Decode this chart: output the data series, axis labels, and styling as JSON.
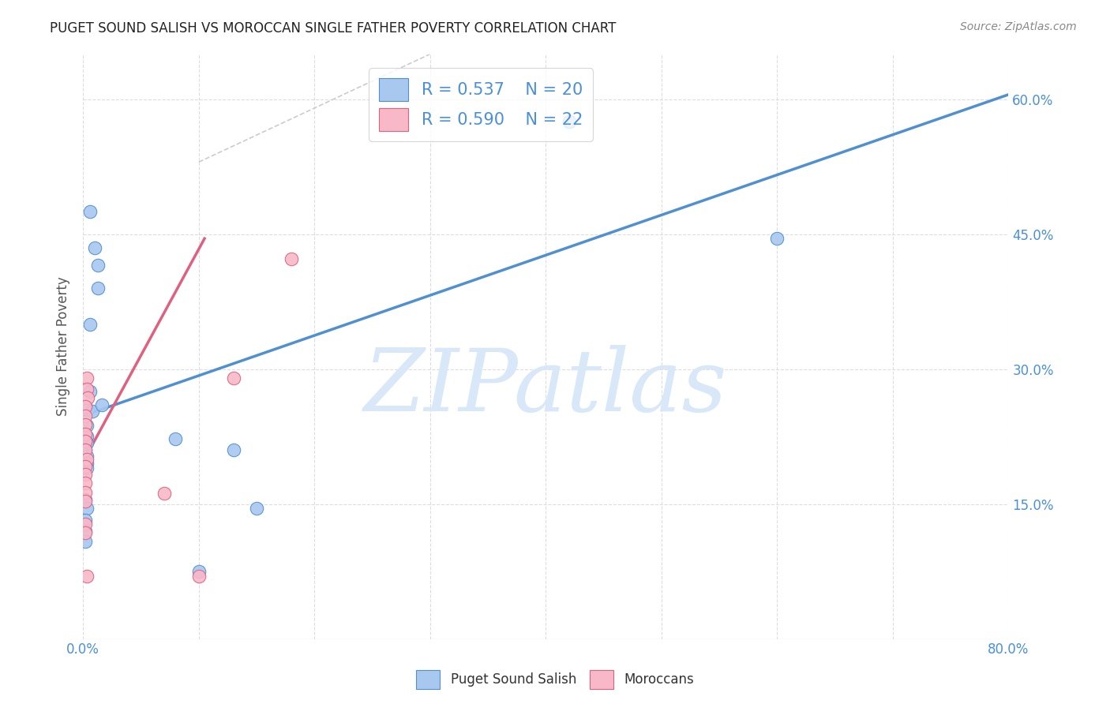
{
  "title": "PUGET SOUND SALISH VS MOROCCAN SINGLE FATHER POVERTY CORRELATION CHART",
  "source": "Source: ZipAtlas.com",
  "ylabel": "Single Father Poverty",
  "xlim": [
    0.0,
    0.8
  ],
  "ylim": [
    0.0,
    0.65
  ],
  "xtick_positions": [
    0.0,
    0.1,
    0.2,
    0.3,
    0.4,
    0.5,
    0.6,
    0.7,
    0.8
  ],
  "xticklabels": [
    "0.0%",
    "",
    "",
    "",
    "",
    "",
    "",
    "",
    "80.0%"
  ],
  "ytick_positions": [
    0.15,
    0.3,
    0.45,
    0.6
  ],
  "ytick_labels": [
    "15.0%",
    "30.0%",
    "45.0%",
    "60.0%"
  ],
  "blue_color": "#A8C8F0",
  "pink_color": "#F8B8C8",
  "blue_line_color": "#5090D0",
  "pink_line_color": "#E06080",
  "diagonal_color": "#CCCCCC",
  "watermark_color": "#D8E8F8",
  "blue_scatter": [
    [
      0.006,
      0.475
    ],
    [
      0.01,
      0.435
    ],
    [
      0.013,
      0.415
    ],
    [
      0.013,
      0.39
    ],
    [
      0.006,
      0.35
    ],
    [
      0.006,
      0.275
    ],
    [
      0.004,
      0.255
    ],
    [
      0.008,
      0.253
    ],
    [
      0.003,
      0.237
    ],
    [
      0.003,
      0.225
    ],
    [
      0.003,
      0.218
    ],
    [
      0.002,
      0.21
    ],
    [
      0.003,
      0.203
    ],
    [
      0.003,
      0.195
    ],
    [
      0.003,
      0.19
    ],
    [
      0.002,
      0.155
    ],
    [
      0.003,
      0.145
    ],
    [
      0.002,
      0.132
    ],
    [
      0.002,
      0.12
    ],
    [
      0.002,
      0.108
    ],
    [
      0.08,
      0.222
    ],
    [
      0.13,
      0.21
    ],
    [
      0.016,
      0.26
    ],
    [
      0.15,
      0.145
    ],
    [
      0.6,
      0.445
    ],
    [
      0.42,
      0.575
    ],
    [
      0.1,
      0.075
    ]
  ],
  "pink_scatter": [
    [
      0.003,
      0.29
    ],
    [
      0.003,
      0.278
    ],
    [
      0.004,
      0.268
    ],
    [
      0.002,
      0.258
    ],
    [
      0.002,
      0.248
    ],
    [
      0.002,
      0.238
    ],
    [
      0.002,
      0.228
    ],
    [
      0.002,
      0.22
    ],
    [
      0.002,
      0.21
    ],
    [
      0.003,
      0.2
    ],
    [
      0.002,
      0.192
    ],
    [
      0.002,
      0.183
    ],
    [
      0.002,
      0.173
    ],
    [
      0.002,
      0.163
    ],
    [
      0.002,
      0.153
    ],
    [
      0.07,
      0.162
    ],
    [
      0.002,
      0.128
    ],
    [
      0.002,
      0.118
    ],
    [
      0.18,
      0.422
    ],
    [
      0.13,
      0.29
    ],
    [
      0.003,
      0.07
    ],
    [
      0.1,
      0.07
    ]
  ],
  "blue_line_x": [
    0.0,
    0.8
  ],
  "blue_line_y": [
    0.248,
    0.605
  ],
  "pink_line_x": [
    -0.005,
    0.105
  ],
  "pink_line_y": [
    0.185,
    0.445
  ],
  "diag_line_x": [
    0.1,
    0.3
  ],
  "diag_line_y": [
    0.53,
    0.65
  ]
}
